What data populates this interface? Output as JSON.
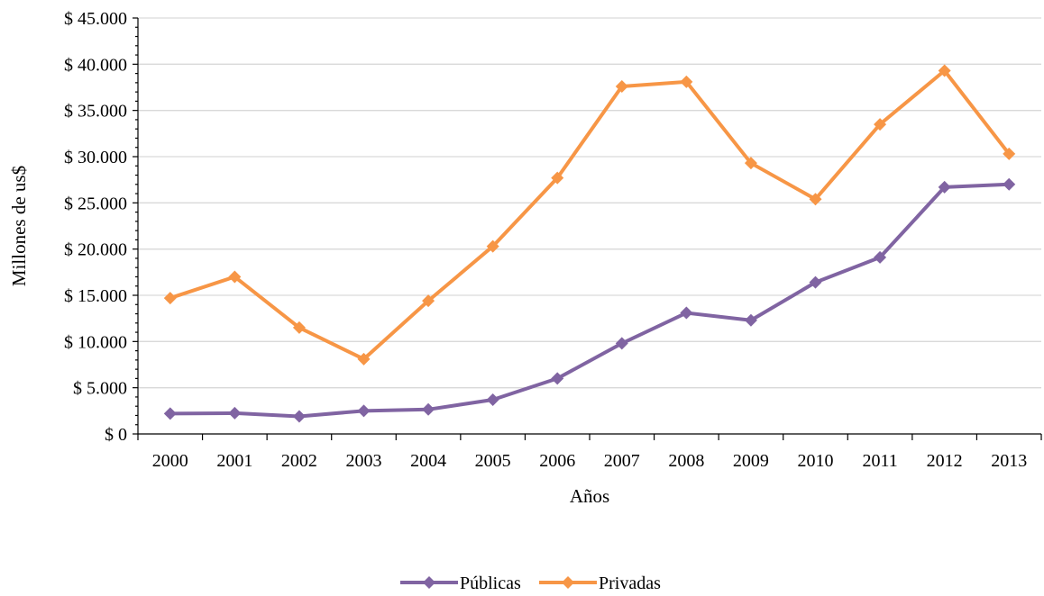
{
  "chart_data": {
    "type": "line",
    "title": "",
    "xlabel": "Años",
    "ylabel": "Millones de us$",
    "categories": [
      "2000",
      "2001",
      "2002",
      "2003",
      "2004",
      "2005",
      "2006",
      "2007",
      "2008",
      "2009",
      "2010",
      "2011",
      "2012",
      "2013"
    ],
    "ylim": [
      0,
      45000
    ],
    "y_ticks": [
      0,
      5000,
      10000,
      15000,
      20000,
      25000,
      30000,
      35000,
      40000,
      45000
    ],
    "y_tick_labels": [
      "$ 0",
      "$ 5.000",
      "$ 10.000",
      "$ 15.000",
      "$ 20.000",
      "$ 25.000",
      "$ 30.000",
      "$ 35.000",
      "$ 40.000",
      "$ 45.000"
    ],
    "grid": true,
    "legend_position": "bottom-center",
    "series": [
      {
        "name": "Públicas",
        "color": "#8064a2",
        "marker": "diamond",
        "values": [
          2200,
          2250,
          1900,
          2500,
          2650,
          3700,
          6000,
          9800,
          13100,
          12300,
          16400,
          19100,
          26700,
          27000
        ]
      },
      {
        "name": "Privadas",
        "color": "#f79646",
        "marker": "diamond",
        "values": [
          14700,
          17000,
          11500,
          8100,
          14400,
          20300,
          27700,
          37600,
          38100,
          29300,
          25400,
          33500,
          39300,
          30300
        ]
      }
    ]
  }
}
